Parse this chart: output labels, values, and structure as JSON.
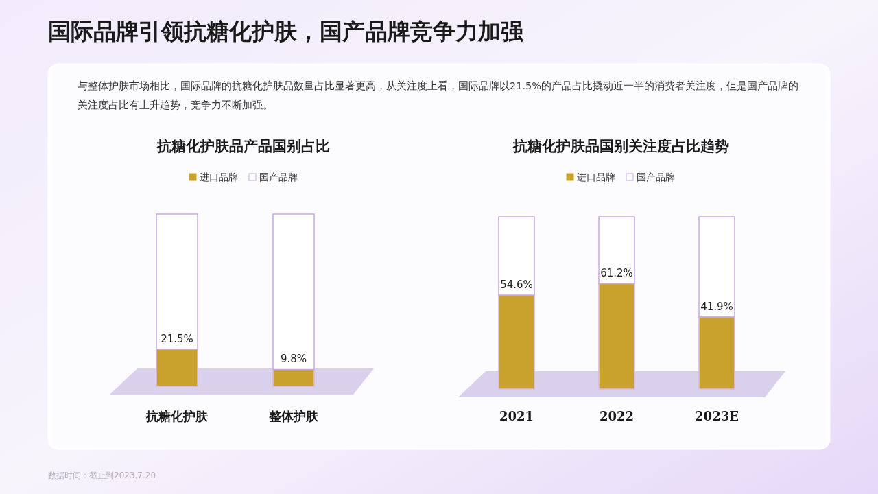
{
  "chart_data": [
    {
      "type": "other",
      "title": "国际品牌引领抗糖化护肤，国产品牌竞争力加强",
      "subtitle": "与整体护肤市场相比，国际品牌的抗糖化护肤品数量占比显著更高，从关注度上看，国际品牌以21.5%的产品占比撬动近一半的消费者关注度，但是国产品牌的关注度占比有上升趋势，竞争力不断加强。",
      "annotations": [
        "数据时间：截止到2023.7.20"
      ]
    },
    {
      "type": "bar",
      "title": "抗糖化护肤品产品国别占比",
      "categories": [
        "抗糖化护肤",
        "整体护肤"
      ],
      "stacked": true,
      "legend": "top",
      "series": [
        {
          "name": "进口品牌",
          "color": "#c9a22e",
          "values": [
            21.5,
            9.8
          ],
          "value_labels": [
            "21.5%",
            "9.8%"
          ]
        },
        {
          "name": "国产品牌",
          "color": "#ffffff",
          "values": [
            78.5,
            90.2
          ]
        }
      ]
    },
    {
      "type": "bar",
      "title": "抗糖化护肤品国别关注度占比趋势",
      "categories": [
        "2021",
        "2022",
        "2023E"
      ],
      "stacked": true,
      "legend": "top",
      "series": [
        {
          "name": "进口品牌",
          "color": "#c9a22e",
          "values": [
            54.6,
            61.2,
            41.9
          ],
          "value_labels": [
            "54.6%",
            "61.2%",
            "41.9%"
          ]
        },
        {
          "name": "国产品牌",
          "color": "#ffffff",
          "values": [
            45.4,
            38.8,
            58.1
          ]
        }
      ]
    }
  ]
}
